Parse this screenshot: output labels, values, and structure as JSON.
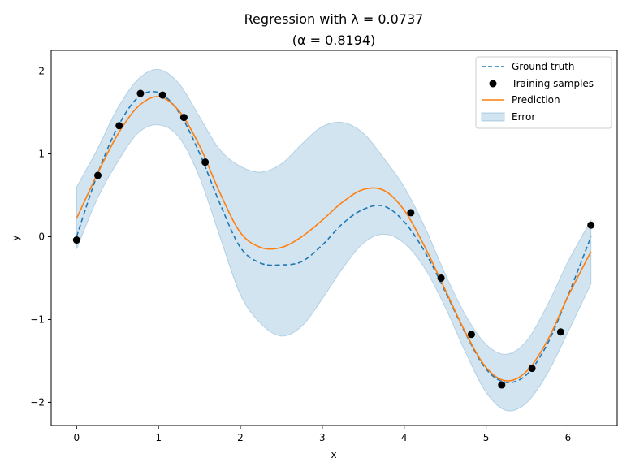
{
  "chart_data": {
    "type": "line",
    "title": "Regression with λ = 0.0737",
    "subtitle": "(α = 0.8194)",
    "xlabel": "x",
    "ylabel": "y",
    "xlim": [
      -0.31,
      6.6
    ],
    "ylim": [
      -2.28,
      2.25
    ],
    "xticks": [
      0,
      1,
      2,
      3,
      4,
      5,
      6
    ],
    "xtick_labels": [
      "0",
      "1",
      "2",
      "3",
      "4",
      "5",
      "6"
    ],
    "yticks": [
      -2,
      -1,
      0,
      1,
      2
    ],
    "ytick_labels": [
      "−2",
      "−1",
      "0",
      "1",
      "2"
    ],
    "grid": false,
    "legend_position": "top-right",
    "legend": [
      "Ground truth",
      "Training samples",
      "Prediction",
      "Error"
    ],
    "colors": {
      "ground_truth": "#1f77b4",
      "prediction": "#ff7f0e",
      "samples": "#000000",
      "error_band": "#1f77b4"
    },
    "training_samples": {
      "x": [
        0.0,
        0.26,
        0.52,
        0.78,
        1.05,
        1.31,
        1.57,
        4.08,
        4.45,
        4.82,
        5.19,
        5.56,
        5.91,
        6.28
      ],
      "y": [
        -0.04,
        0.74,
        1.34,
        1.73,
        1.71,
        1.44,
        0.9,
        0.29,
        -0.5,
        -1.18,
        -1.79,
        -1.59,
        -1.15,
        0.14
      ]
    },
    "ground_truth": {
      "x": [
        0,
        0.25,
        0.5,
        0.75,
        1.0,
        1.25,
        1.5,
        1.75,
        2.0,
        2.25,
        2.5,
        2.75,
        3.0,
        3.25,
        3.5,
        3.75,
        4.0,
        4.25,
        4.5,
        4.75,
        5.0,
        5.25,
        5.5,
        5.75,
        6.0,
        6.28
      ],
      "y": [
        0.0,
        0.74,
        1.32,
        1.68,
        1.74,
        1.5,
        1.01,
        0.4,
        -0.13,
        -0.32,
        -0.34,
        -0.3,
        -0.1,
        0.16,
        0.33,
        0.37,
        0.18,
        -0.18,
        -0.66,
        -1.17,
        -1.6,
        -1.76,
        -1.66,
        -1.29,
        -0.71,
        0.0
      ]
    },
    "prediction": {
      "x": [
        0,
        0.25,
        0.5,
        0.75,
        1.0,
        1.25,
        1.5,
        1.75,
        2.0,
        2.25,
        2.5,
        2.75,
        3.0,
        3.25,
        3.5,
        3.75,
        4.0,
        4.25,
        4.5,
        4.75,
        5.0,
        5.25,
        5.5,
        5.75,
        6.0,
        6.28
      ],
      "y": [
        0.22,
        0.75,
        1.23,
        1.57,
        1.69,
        1.52,
        1.1,
        0.53,
        0.05,
        -0.13,
        -0.13,
        0.0,
        0.2,
        0.42,
        0.57,
        0.56,
        0.32,
        -0.12,
        -0.64,
        -1.16,
        -1.58,
        -1.74,
        -1.62,
        -1.25,
        -0.72,
        -0.18
      ]
    },
    "error_band": {
      "x": [
        0,
        0.25,
        0.5,
        0.75,
        1.0,
        1.25,
        1.5,
        1.75,
        2.0,
        2.25,
        2.5,
        2.75,
        3.0,
        3.25,
        3.5,
        3.75,
        4.0,
        4.25,
        4.5,
        4.75,
        5.0,
        5.25,
        5.5,
        5.75,
        6.0,
        6.28
      ],
      "upper": [
        0.6,
        1.05,
        1.55,
        1.9,
        2.02,
        1.85,
        1.45,
        1.05,
        0.85,
        0.78,
        0.88,
        1.12,
        1.33,
        1.38,
        1.25,
        0.95,
        0.6,
        0.12,
        -0.45,
        -0.95,
        -1.3,
        -1.42,
        -1.25,
        -0.82,
        -0.3,
        0.2
      ],
      "lower": [
        -0.15,
        0.45,
        0.9,
        1.25,
        1.35,
        1.2,
        0.72,
        0.0,
        -0.7,
        -1.05,
        -1.2,
        -1.08,
        -0.75,
        -0.38,
        -0.08,
        0.03,
        -0.08,
        -0.38,
        -0.85,
        -1.4,
        -1.88,
        -2.1,
        -2.0,
        -1.65,
        -1.15,
        -0.57
      ]
    }
  }
}
